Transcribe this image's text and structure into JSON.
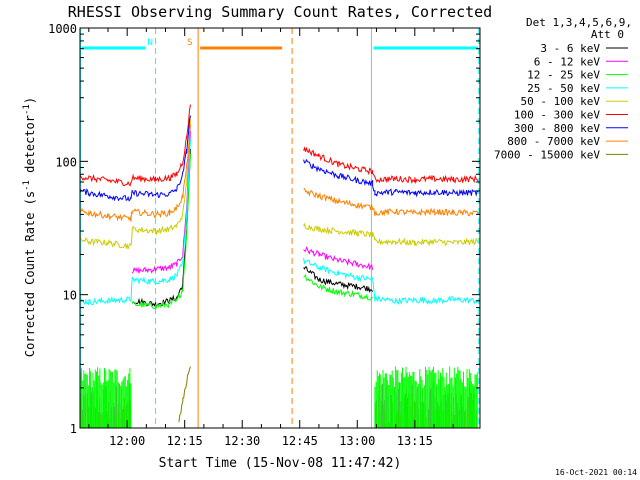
{
  "chart_data": {
    "type": "line",
    "title": "RHESSI Observing Summary Count Rates, Corrected",
    "xlabel": "Start Time (15-Nov-08 11:47:42)",
    "ylabel_main": "Corrected Count Rate (s",
    "ylabel_sup1": "-1",
    "ylabel_mid": " detector",
    "ylabel_sup2": "-1",
    "ylabel_end": ")",
    "y_scale": "log",
    "ylim": [
      1,
      1000
    ],
    "y_ticks": [
      {
        "value": 1,
        "label": "1"
      },
      {
        "value": 10,
        "label": "10"
      },
      {
        "value": 100,
        "label": "100"
      },
      {
        "value": 1000,
        "label": "1000"
      }
    ],
    "x_start_min": 707.7,
    "x_end_min": 812.0,
    "x_ticks": [
      {
        "value": 720,
        "label": "12:00"
      },
      {
        "value": 735,
        "label": "12:15"
      },
      {
        "value": 750,
        "label": "12:30"
      },
      {
        "value": 765,
        "label": "12:45"
      },
      {
        "value": 780,
        "label": "13:00"
      },
      {
        "value": 795,
        "label": "13:15"
      }
    ],
    "legend_header_1": "Det 1,3,4,5,6,9,",
    "legend_header_2": "Att 0",
    "legend_position": "outside-right",
    "footer_timestamp": "16-Oct-2021 00:14",
    "flags": [
      {
        "label": "N",
        "color": "#00ffff",
        "start": 707.7,
        "end": 727.4
      },
      {
        "label": "S",
        "color": "#ff8000",
        "start": 738.5,
        "end": 763.0
      },
      {
        "label": "",
        "color": "#00ffff",
        "start": 783.7,
        "end": 812.0
      }
    ],
    "vlines": [
      {
        "x": 707.8,
        "color": "#00ffff",
        "style": "solid"
      },
      {
        "x": 727.4,
        "color": "#00ffff",
        "style": "dashed"
      },
      {
        "x": 738.5,
        "color": "#ff8000",
        "style": "solid"
      },
      {
        "x": 763.0,
        "color": "#ff8000",
        "style": "dashed"
      },
      {
        "x": 783.7,
        "color": "#00ffff",
        "style": "solid"
      },
      {
        "x": 811.7,
        "color": "#00ffff",
        "style": "dashed"
      }
    ],
    "segments": [
      {
        "start": 707.7,
        "end": 737.0
      },
      {
        "start": 766.0,
        "end": 811.5
      }
    ],
    "series": [
      {
        "name": "3 - 6 keV",
        "color": "#000000",
        "points": [
          [
            707.7,
            null
          ],
          [
            721.3,
            null
          ],
          [
            721.3,
            9.0
          ],
          [
            727.4,
            8.5
          ],
          [
            731.0,
            9.0
          ],
          [
            733.0,
            9.5
          ],
          [
            734.5,
            12
          ],
          [
            735.5,
            30
          ],
          [
            736.5,
            120
          ],
          [
            737.0,
            null
          ],
          [
            766.0,
            16
          ],
          [
            770.0,
            13
          ],
          [
            775.0,
            12
          ],
          [
            780.0,
            11.5
          ],
          [
            784.0,
            11
          ],
          [
            784.5,
            null
          ],
          [
            811.5,
            null
          ]
        ]
      },
      {
        "name": "6 - 12 keV",
        "color": "#ff00ff",
        "points": [
          [
            707.7,
            null
          ],
          [
            721.3,
            null
          ],
          [
            721.3,
            15
          ],
          [
            727.4,
            15.5
          ],
          [
            731.0,
            16
          ],
          [
            733.0,
            17
          ],
          [
            734.5,
            20
          ],
          [
            735.5,
            45
          ],
          [
            736.5,
            170
          ],
          [
            737.0,
            null
          ],
          [
            766.0,
            22
          ],
          [
            770.0,
            20
          ],
          [
            775.0,
            18
          ],
          [
            780.0,
            17
          ],
          [
            784.0,
            16
          ],
          [
            784.5,
            null
          ],
          [
            811.5,
            null
          ]
        ]
      },
      {
        "name": "12 - 25 keV",
        "color": "#00ff00",
        "points": [
          [
            707.7,
            null
          ],
          [
            721.3,
            null
          ],
          [
            721.3,
            8.5
          ],
          [
            727.4,
            8.2
          ],
          [
            731.0,
            8.5
          ],
          [
            733.0,
            9.0
          ],
          [
            734.5,
            11
          ],
          [
            735.5,
            28
          ],
          [
            736.5,
            115
          ],
          [
            737.0,
            null
          ],
          [
            766.0,
            14
          ],
          [
            770.0,
            11.5
          ],
          [
            775.0,
            10.5
          ],
          [
            780.0,
            10
          ],
          [
            784.0,
            9.5
          ],
          [
            784.5,
            null
          ],
          [
            811.5,
            null
          ]
        ]
      },
      {
        "name": "25 - 50 keV",
        "color": "#00ffff",
        "points": [
          [
            707.7,
            9.0
          ],
          [
            710.0,
            8.8
          ],
          [
            715.0,
            9.0
          ],
          [
            721.0,
            9.2
          ],
          [
            721.3,
            13
          ],
          [
            727.4,
            12.5
          ],
          [
            731.0,
            13
          ],
          [
            733.0,
            14
          ],
          [
            734.5,
            17
          ],
          [
            735.5,
            40
          ],
          [
            736.5,
            150
          ],
          [
            737.0,
            null
          ],
          [
            766.0,
            18
          ],
          [
            770.0,
            16
          ],
          [
            775.0,
            14.5
          ],
          [
            780.0,
            13.5
          ],
          [
            784.0,
            13
          ],
          [
            784.6,
            9.3
          ],
          [
            790.0,
            9.0
          ],
          [
            795.0,
            9.1
          ],
          [
            800.0,
            9.0
          ],
          [
            805.0,
            9.2
          ],
          [
            811.5,
            9.0
          ]
        ]
      },
      {
        "name": "50 - 100 keV",
        "color": "#cccc00",
        "points": [
          [
            707.7,
            26
          ],
          [
            710.0,
            25
          ],
          [
            715.0,
            24.5
          ],
          [
            721.0,
            23
          ],
          [
            721.3,
            31
          ],
          [
            727.4,
            30
          ],
          [
            731.0,
            31
          ],
          [
            733.0,
            33
          ],
          [
            734.5,
            40
          ],
          [
            735.5,
            70
          ],
          [
            736.5,
            200
          ],
          [
            737.0,
            null
          ],
          [
            766.0,
            33
          ],
          [
            770.0,
            31
          ],
          [
            775.0,
            30
          ],
          [
            780.0,
            29
          ],
          [
            784.0,
            28
          ],
          [
            784.6,
            25
          ],
          [
            790.0,
            25
          ],
          [
            795.0,
            24.5
          ],
          [
            800.0,
            25
          ],
          [
            805.0,
            24.5
          ],
          [
            811.5,
            25
          ]
        ]
      },
      {
        "name": "100 - 300 keV",
        "color": "#ff0000",
        "points": [
          [
            707.7,
            77
          ],
          [
            710.0,
            75
          ],
          [
            715.0,
            72
          ],
          [
            721.0,
            68
          ],
          [
            721.3,
            75
          ],
          [
            727.4,
            73
          ],
          [
            731.0,
            75
          ],
          [
            733.0,
            80
          ],
          [
            734.5,
            100
          ],
          [
            735.5,
            150
          ],
          [
            736.5,
            270
          ],
          [
            737.0,
            null
          ],
          [
            766.0,
            125
          ],
          [
            770.0,
            110
          ],
          [
            775.0,
            95
          ],
          [
            780.0,
            88
          ],
          [
            784.0,
            84
          ],
          [
            784.6,
            73
          ],
          [
            790.0,
            74
          ],
          [
            795.0,
            73
          ],
          [
            800.0,
            74
          ],
          [
            805.0,
            73
          ],
          [
            811.5,
            74
          ]
        ]
      },
      {
        "name": "300 - 800 keV",
        "color": "#0000ff",
        "points": [
          [
            707.7,
            60
          ],
          [
            710.0,
            58
          ],
          [
            715.0,
            55
          ],
          [
            721.0,
            52
          ],
          [
            721.3,
            58
          ],
          [
            727.4,
            56
          ],
          [
            731.0,
            57
          ],
          [
            733.0,
            62
          ],
          [
            734.5,
            80
          ],
          [
            735.5,
            120
          ],
          [
            736.5,
            230
          ],
          [
            737.0,
            null
          ],
          [
            766.0,
            100
          ],
          [
            770.0,
            88
          ],
          [
            775.0,
            78
          ],
          [
            780.0,
            72
          ],
          [
            784.0,
            68
          ],
          [
            784.6,
            58
          ],
          [
            790.0,
            59
          ],
          [
            795.0,
            58
          ],
          [
            800.0,
            59
          ],
          [
            805.0,
            58
          ],
          [
            811.5,
            58
          ]
        ]
      },
      {
        "name": "800 - 7000 keV",
        "color": "#ff8000",
        "points": [
          [
            707.7,
            42
          ],
          [
            710.0,
            41
          ],
          [
            715.0,
            39
          ],
          [
            721.0,
            37
          ],
          [
            721.3,
            42
          ],
          [
            727.4,
            40
          ],
          [
            731.0,
            41
          ],
          [
            733.0,
            45
          ],
          [
            734.5,
            55
          ],
          [
            735.5,
            90
          ],
          [
            736.5,
            180
          ],
          [
            737.0,
            null
          ],
          [
            766.0,
            60
          ],
          [
            770.0,
            55
          ],
          [
            775.0,
            50
          ],
          [
            780.0,
            47
          ],
          [
            784.0,
            45
          ],
          [
            784.6,
            41
          ],
          [
            790.0,
            42
          ],
          [
            795.0,
            41
          ],
          [
            800.0,
            42
          ],
          [
            805.0,
            41
          ],
          [
            811.5,
            41
          ]
        ]
      },
      {
        "name": "7000 - 15000 keV",
        "color": "#808000",
        "points": [
          [
            707.7,
            null
          ],
          [
            733.5,
            null
          ],
          [
            733.5,
            1.1
          ],
          [
            734.5,
            1.6
          ],
          [
            735.5,
            2.2
          ],
          [
            736.5,
            3.0
          ],
          [
            737.0,
            null
          ],
          [
            811.5,
            null
          ]
        ]
      }
    ]
  }
}
